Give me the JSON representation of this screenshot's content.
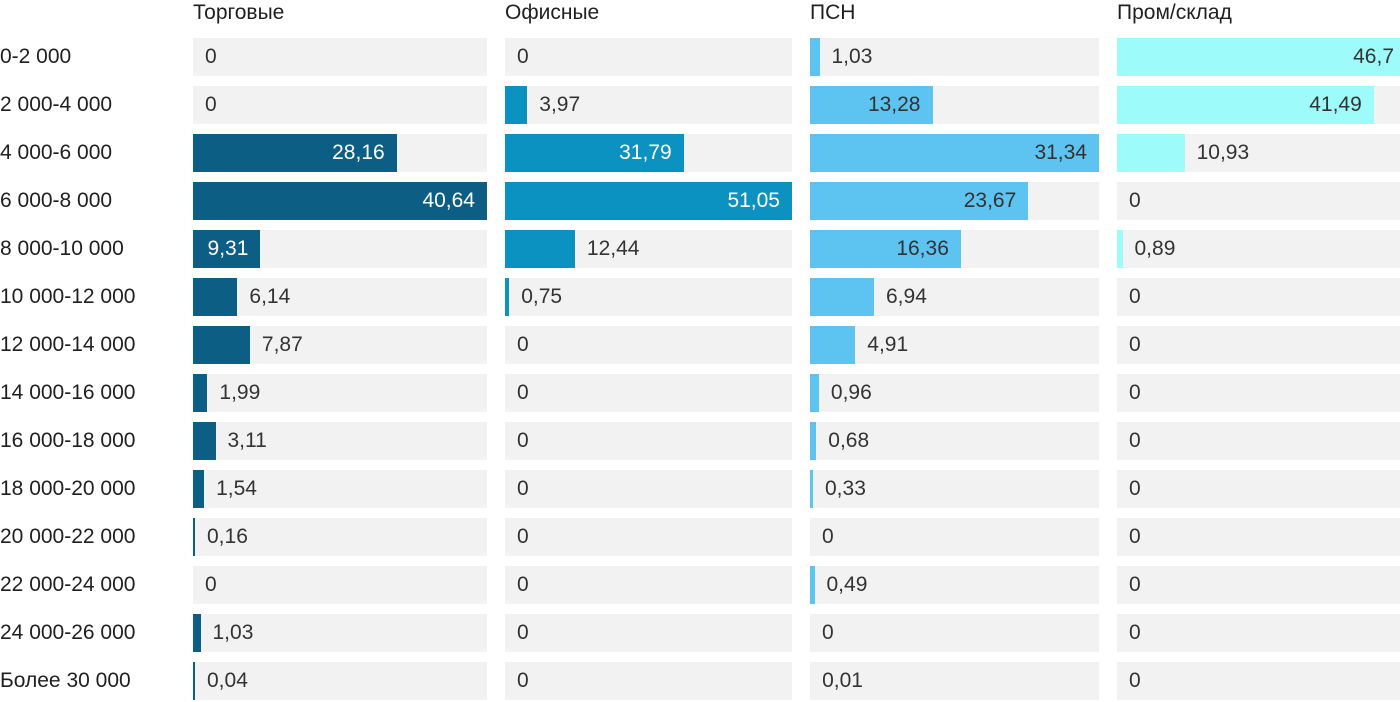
{
  "chart_data": {
    "type": "bar",
    "orientation": "horizontal",
    "title": "",
    "xlabel": "",
    "ylabel": "",
    "grid": false,
    "legend_position": "column-headers-top",
    "scaling_note": "each column is scaled independently to its own maximum value; max bar fills full track width",
    "track_color": "#f2f2f2",
    "category_label_color": "#1f1f1f",
    "value_label_outside_color": "#333333",
    "categories": [
      "0-2 000",
      "2 000-4 000",
      "4 000-6 000",
      "6 000-8 000",
      "8 000-10 000",
      "10 000-12 000",
      "12 000-14 000",
      "14 000-16 000",
      "16 000-18 000",
      "18 000-20 000",
      "20 000-22 000",
      "22 000-24 000",
      "24 000-26 000",
      "Более 30 000"
    ],
    "series": [
      {
        "name": "Торговые",
        "color": "#0d5e85",
        "inside_label_color": "#ffffff",
        "values": [
          0,
          0,
          28.16,
          40.64,
          9.31,
          6.14,
          7.87,
          1.99,
          3.11,
          1.54,
          0.16,
          0,
          1.03,
          0.04
        ],
        "labels": [
          "0",
          "0",
          "28,16",
          "40,64",
          "9,31",
          "6,14",
          "7,87",
          "1,99",
          "3,11",
          "1,54",
          "0,16",
          "0",
          "1,03",
          "0,04"
        ],
        "label_inside": [
          false,
          false,
          true,
          true,
          true,
          false,
          false,
          false,
          false,
          false,
          false,
          false,
          false,
          false
        ]
      },
      {
        "name": "Офисные",
        "color": "#0c92c0",
        "inside_label_color": "#ffffff",
        "values": [
          0,
          3.97,
          31.79,
          51.05,
          12.44,
          0.75,
          0,
          0,
          0,
          0,
          0,
          0,
          0,
          0
        ],
        "labels": [
          "0",
          "3,97",
          "31,79",
          "51,05",
          "12,44",
          "0,75",
          "0",
          "0",
          "0",
          "0",
          "0",
          "0",
          "0",
          "0"
        ],
        "label_inside": [
          false,
          false,
          true,
          true,
          false,
          false,
          false,
          false,
          false,
          false,
          false,
          false,
          false,
          false
        ]
      },
      {
        "name": "ПСН",
        "color": "#5dc3f0",
        "inside_label_color": "#333333",
        "values": [
          1.03,
          13.28,
          31.34,
          23.67,
          16.36,
          6.94,
          4.91,
          0.96,
          0.68,
          0.33,
          0,
          0.49,
          0,
          0.01
        ],
        "labels": [
          "1,03",
          "13,28",
          "31,34",
          "23,67",
          "16,36",
          "6,94",
          "4,91",
          "0,96",
          "0,68",
          "0,33",
          "0",
          "0,49",
          "0",
          "0,01"
        ],
        "label_inside": [
          false,
          true,
          true,
          true,
          true,
          false,
          false,
          false,
          false,
          false,
          false,
          false,
          false,
          false
        ]
      },
      {
        "name": "Пром/склад",
        "color": "#9dfcfa",
        "inside_label_color": "#333333",
        "values": [
          46.7,
          41.49,
          10.93,
          0,
          0.89,
          0,
          0,
          0,
          0,
          0,
          0,
          0,
          0,
          0
        ],
        "labels": [
          "46,7",
          "41,49",
          "10,93",
          "0",
          "0,89",
          "0",
          "0",
          "0",
          "0",
          "0",
          "0",
          "0",
          "0",
          "0"
        ],
        "label_inside": [
          true,
          true,
          false,
          false,
          false,
          false,
          false,
          false,
          false,
          false,
          false,
          false,
          false,
          false
        ]
      }
    ]
  }
}
